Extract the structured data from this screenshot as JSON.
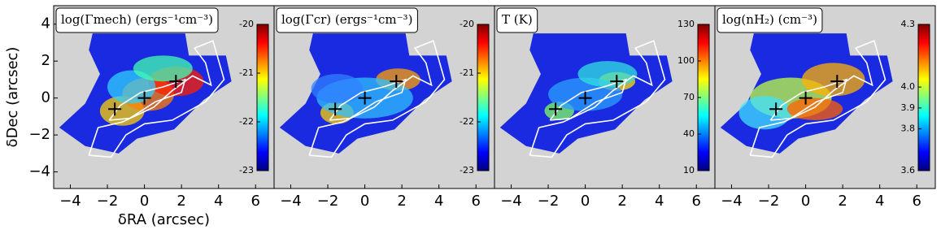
{
  "chart_data": [
    {
      "type": "heatmap",
      "title": "log(Γmech) (ergs⁻¹cm⁻³)",
      "xlabel": "δRA (arcsec)",
      "ylabel": "δDec (arcsec)",
      "xlim": [
        -4.9,
        7.0
      ],
      "ylim": [
        -4.9,
        5.0
      ],
      "xticks": [
        {
          "value": -4,
          "label": "−4"
        },
        {
          "value": -2,
          "label": "−2"
        },
        0,
        2,
        4,
        6
      ],
      "yticks": [
        {
          "value": -4,
          "label": "−4"
        },
        {
          "value": -2,
          "label": "−2"
        },
        0,
        2,
        4
      ],
      "clim": [
        -23,
        -20
      ],
      "cticks": [
        -23,
        -22,
        -21,
        -20
      ],
      "markers": {
        "x": [
          -1.6,
          0,
          1.7
        ],
        "y": [
          -0.6,
          0,
          0.9
        ]
      }
    },
    {
      "type": "heatmap",
      "title": "log(Γcr) (ergs⁻¹cm⁻³)",
      "xlim": [
        -4.9,
        7.0
      ],
      "ylim": [
        -4.9,
        5.0
      ],
      "xticks": [
        {
          "value": -4,
          "label": "−4"
        },
        {
          "value": -2,
          "label": "−2"
        },
        0,
        2,
        4,
        6
      ],
      "clim": [
        -23,
        -20
      ],
      "cticks": [
        -23,
        -22,
        -21,
        -20
      ],
      "markers": {
        "x": [
          -1.6,
          0,
          1.7
        ],
        "y": [
          -0.6,
          0,
          0.9
        ]
      }
    },
    {
      "type": "heatmap",
      "title": "T (K)",
      "xlim": [
        -4.9,
        7.0
      ],
      "ylim": [
        -4.9,
        5.0
      ],
      "xticks": [
        {
          "value": -4,
          "label": "−4"
        },
        {
          "value": -2,
          "label": "−2"
        },
        0,
        2,
        4,
        6
      ],
      "clim": [
        10,
        130
      ],
      "cticks": [
        10,
        40,
        70,
        100,
        130
      ],
      "markers": {
        "x": [
          -1.6,
          0,
          1.7
        ],
        "y": [
          -0.6,
          0,
          0.9
        ]
      }
    },
    {
      "type": "heatmap",
      "title": "log(nH₂) (cm⁻³)",
      "xlim": [
        -4.9,
        7.0
      ],
      "ylim": [
        -4.9,
        5.0
      ],
      "xticks": [
        {
          "value": -4,
          "label": "−4"
        },
        {
          "value": -2,
          "label": "−2"
        },
        0,
        2,
        4,
        6
      ],
      "clim": [
        3.6,
        4.3
      ],
      "cticks": [
        3.6,
        3.8,
        3.9,
        {
          "value": 4.0,
          "label": "4.0"
        },
        4.3
      ],
      "markers": {
        "x": [
          -1.6,
          0,
          1.7
        ],
        "y": [
          -0.6,
          0,
          0.9
        ]
      }
    }
  ]
}
